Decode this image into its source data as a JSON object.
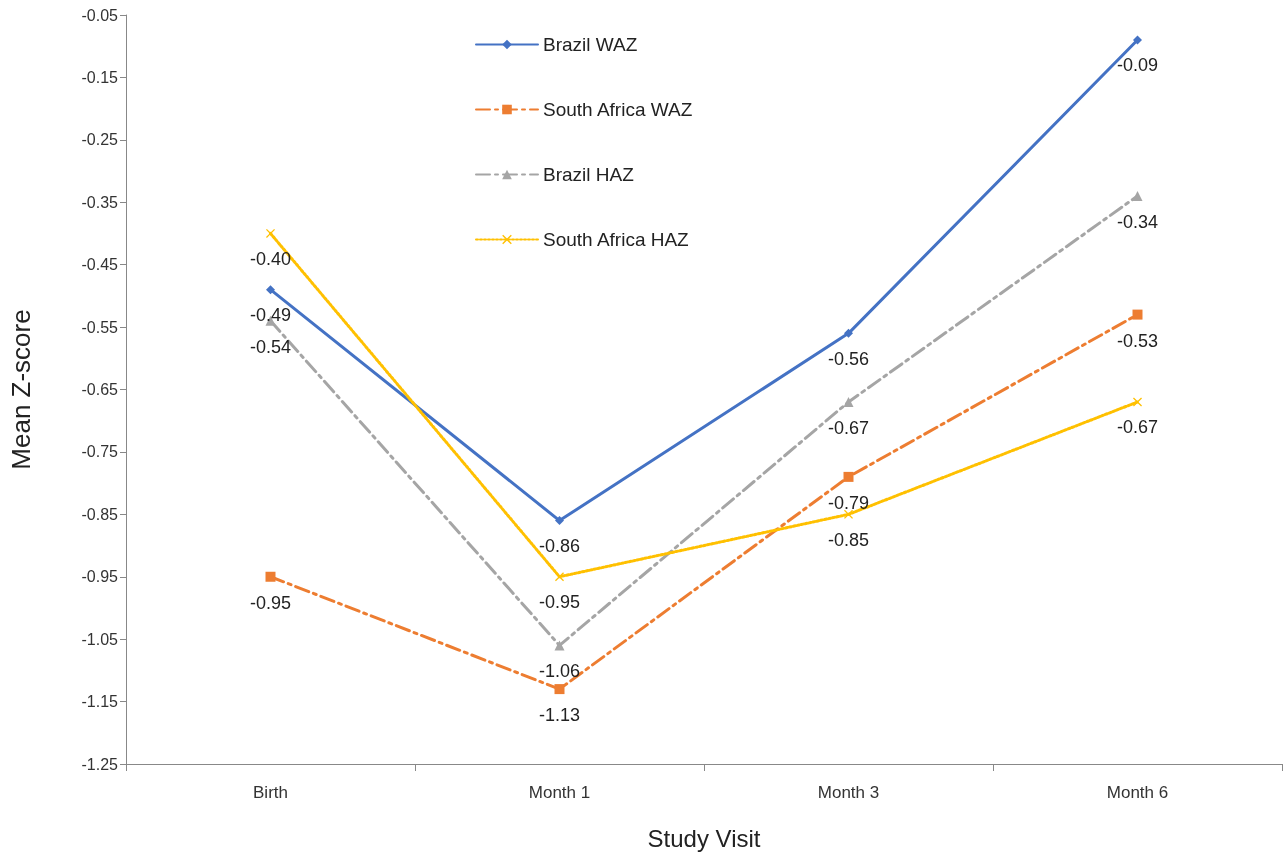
{
  "chart_data": {
    "type": "line",
    "xlabel": "Study Visit",
    "ylabel": "Mean Z-score",
    "categories": [
      "Birth",
      "Month 1",
      "Month 3",
      "Month 6"
    ],
    "ylim": [
      -1.25,
      -0.05
    ],
    "yticks": [
      -1.25,
      -1.15,
      -1.05,
      -0.95,
      -0.85,
      -0.75,
      -0.65,
      -0.55,
      -0.45,
      -0.35,
      -0.25,
      -0.15,
      -0.05
    ],
    "grid": false,
    "legend": "top",
    "series": [
      {
        "name": "Brazil WAZ",
        "color": "#4472c4",
        "marker": "diamond",
        "line_style": "solid",
        "values": [
          -0.49,
          -0.86,
          -0.56,
          -0.09
        ],
        "value_labels": [
          "-0.49",
          "-0.86",
          "-0.56",
          "-0.09"
        ]
      },
      {
        "name": "South Africa WAZ",
        "color": "#ed7d31",
        "marker": "square",
        "line_style": "dashed",
        "values": [
          -0.95,
          -1.13,
          -0.79,
          -0.53
        ],
        "value_labels": [
          "-0.95",
          "-1.13",
          "-0.79",
          "-0.53"
        ]
      },
      {
        "name": "Brazil HAZ",
        "color": "#a5a5a5",
        "marker": "triangle",
        "line_style": "dashed",
        "values": [
          -0.54,
          -1.06,
          -0.67,
          -0.34
        ],
        "value_labels": [
          "-0.54",
          "-1.06",
          "-0.67",
          "-0.34"
        ]
      },
      {
        "name": "South Africa HAZ",
        "color": "#ffc000",
        "marker": "cross",
        "line_style": "dotted",
        "values": [
          -0.4,
          -0.95,
          -0.85,
          -0.67
        ],
        "value_labels": [
          "-0.40",
          "-0.95",
          "-0.85",
          "-0.67"
        ]
      }
    ]
  }
}
